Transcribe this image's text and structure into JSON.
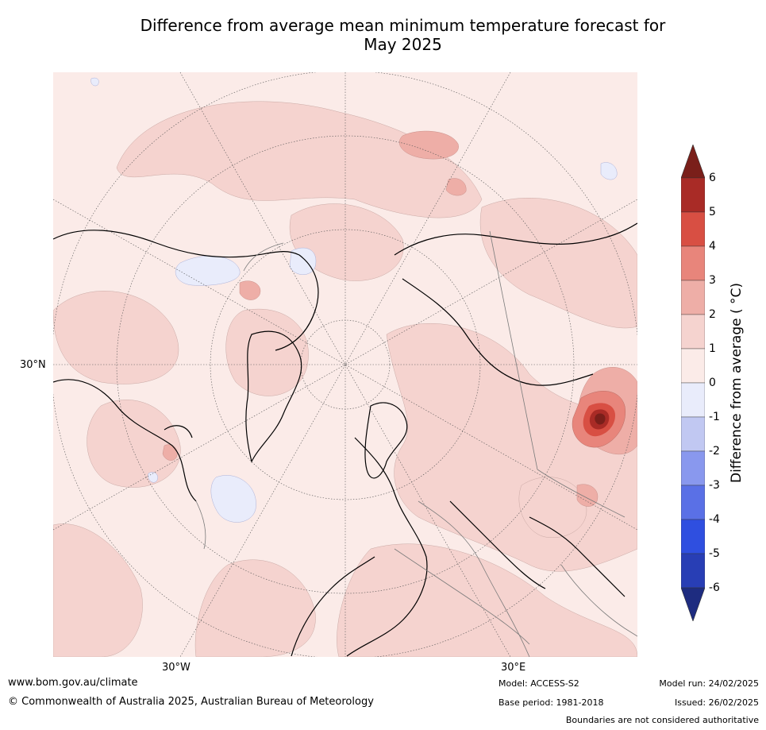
{
  "title_line1": "Difference from average mean minimum temperature forecast for",
  "title_line2": "May 2025",
  "map": {
    "lat_label": "30°N",
    "lon_labels": [
      "30°W",
      "30°E"
    ],
    "hotspot_max_anomaly": 6
  },
  "colorbar": {
    "label": "Difference from average ( °C)",
    "ticks": [
      "6",
      "5",
      "4",
      "3",
      "2",
      "1",
      "0",
      "-1",
      "-2",
      "-3",
      "-4",
      "-5",
      "-6"
    ],
    "colors": {
      "above6": "#7a1f1a",
      "5_6": "#a92b26",
      "4_5": "#d84f43",
      "3_4": "#e8857b",
      "2_3": "#eeaea7",
      "1_2": "#f5d3cf",
      "0_1": "#fbebe8",
      "m1_0": "#e9ecfb",
      "m2_m1": "#c1c8f2",
      "m3_m2": "#8998ee",
      "m4_m3": "#5a70e6",
      "m5_m4": "#2f4fe0",
      "m6_m5": "#283eb5",
      "below_m6": "#1e2c80"
    }
  },
  "footer": {
    "website": "www.bom.gov.au/climate",
    "copyright": "© Commonwealth of Australia 2025, Australian Bureau of Meteorology",
    "model": "Model: ACCESS-S2",
    "base_period": "Base period: 1981-2018",
    "model_run": "Model run: 24/02/2025",
    "issued": "Issued: 26/02/2025",
    "disclaimer": "Boundaries are not considered authoritative"
  }
}
